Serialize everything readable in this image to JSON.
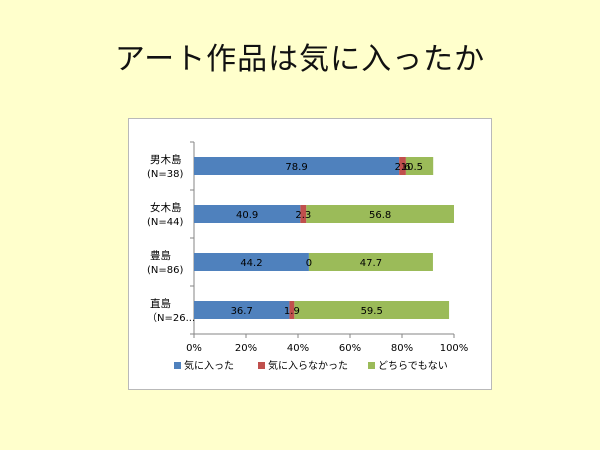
{
  "slide": {
    "title": "アート作品は気に入ったか"
  },
  "chart_data": {
    "type": "bar",
    "orientation": "horizontal",
    "stacking": "percent",
    "categories": [
      [
        "男木島",
        "(N=38)"
      ],
      [
        "女木島",
        "(N=44)"
      ],
      [
        "豊島",
        "(N=86)"
      ],
      [
        "直島",
        "（N=26..."
      ]
    ],
    "series": [
      {
        "name": "気に入った",
        "color": "#4F81BD",
        "values": [
          78.9,
          40.9,
          44.2,
          36.7
        ]
      },
      {
        "name": "気に入らなかった",
        "color": "#C0504D",
        "values": [
          2.6,
          2.3,
          0,
          1.9
        ]
      },
      {
        "name": "どちらでもない",
        "color": "#9BBB59",
        "values": [
          10.5,
          56.8,
          47.7,
          59.5
        ]
      }
    ],
    "x_ticks": [
      "0%",
      "20%",
      "40%",
      "60%",
      "80%",
      "100%"
    ],
    "xlim": [
      0,
      100
    ],
    "grid": false,
    "legend": "bottom",
    "data_labels": true
  }
}
